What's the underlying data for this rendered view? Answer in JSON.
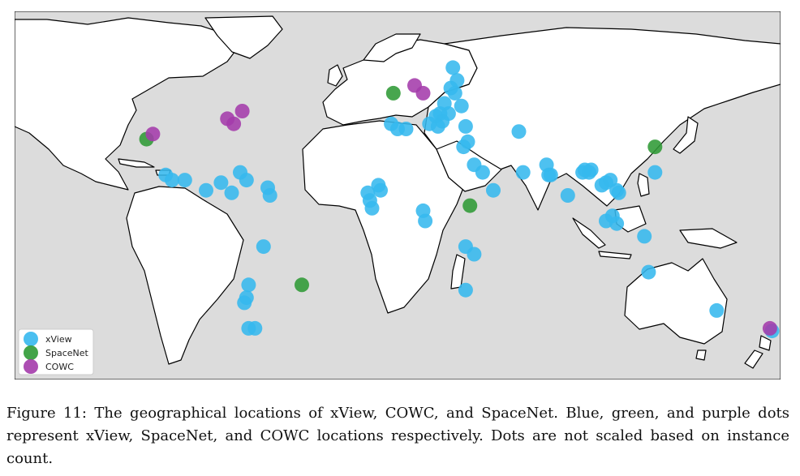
{
  "figure": {
    "caption": "Figure 11: The geographical locations of xView, COWC, and SpaceNet. Blue, green, and purple dots represent xView, SpaceNet, and COWC locations respectively. Dots are not scaled based on instance count.",
    "legend": [
      {
        "name": "xView",
        "color": "#36b8ee"
      },
      {
        "name": "SpaceNet",
        "color": "#2f9a35"
      },
      {
        "name": "COWC",
        "color": "#a43bab"
      }
    ],
    "colors": {
      "ocean": "#dcdcdc",
      "land": "#ffffff",
      "border": "#000000"
    }
  },
  "chart_data": {
    "type": "scatter",
    "grid": false,
    "legend_position": "bottom-left",
    "xlim": [
      -180,
      180
    ],
    "ylim": [
      -60,
      84
    ],
    "series": [
      {
        "name": "xView",
        "color": "#36b8ee",
        "points": [
          [
            -109,
            20
          ],
          [
            -106,
            18
          ],
          [
            -100,
            18
          ],
          [
            -90,
            14
          ],
          [
            -83,
            17
          ],
          [
            -78,
            13
          ],
          [
            -74,
            21
          ],
          [
            -71,
            18
          ],
          [
            -61,
            15
          ],
          [
            -60,
            12
          ],
          [
            -63,
            -8
          ],
          [
            -70,
            -23
          ],
          [
            -71,
            -28
          ],
          [
            -72,
            -30
          ],
          [
            -70,
            -40
          ],
          [
            -67,
            -40
          ],
          [
            -9,
            16
          ],
          [
            -8,
            14
          ],
          [
            -14,
            13
          ],
          [
            -13,
            10
          ],
          [
            -12,
            7
          ],
          [
            22,
            48
          ],
          [
            25,
            54
          ],
          [
            27,
            52
          ],
          [
            28,
            57
          ],
          [
            26,
            62
          ],
          [
            30,
            47
          ],
          [
            24,
            44
          ],
          [
            20,
            44
          ],
          [
            18,
            43
          ],
          [
            21,
            41
          ],
          [
            19,
            39
          ],
          [
            15,
            40
          ],
          [
            32,
            39
          ],
          [
            33,
            33
          ],
          [
            31,
            31
          ],
          [
            -3,
            40
          ],
          [
            0,
            38
          ],
          [
            4,
            38
          ],
          [
            12,
            6
          ],
          [
            13,
            2
          ],
          [
            36,
            24
          ],
          [
            45,
            14
          ],
          [
            40,
            21
          ],
          [
            32,
            -8
          ],
          [
            36,
            -11
          ],
          [
            32,
            -25
          ],
          [
            57,
            37
          ],
          [
            59,
            21
          ],
          [
            70,
            24
          ],
          [
            71,
            20
          ],
          [
            72,
            20
          ],
          [
            80,
            12
          ],
          [
            87,
            21
          ],
          [
            88,
            22
          ],
          [
            91,
            22
          ],
          [
            90,
            21
          ],
          [
            96,
            16
          ],
          [
            98,
            17
          ],
          [
            100,
            18
          ],
          [
            103,
            14
          ],
          [
            104,
            13
          ],
          [
            98,
            2
          ],
          [
            101,
            4
          ],
          [
            103,
            1
          ],
          [
            116,
            -4
          ],
          [
            118,
            -18
          ],
          [
            121,
            21
          ],
          [
            150,
            -33
          ],
          [
            176,
            -41
          ]
        ]
      },
      {
        "name": "SpaceNet",
        "color": "#2f9a35",
        "points": [
          [
            -118,
            34
          ],
          [
            -2,
            52
          ],
          [
            34,
            8
          ],
          [
            121,
            31
          ],
          [
            -45,
            -23
          ]
        ]
      },
      {
        "name": "COWC",
        "color": "#a43bab",
        "points": [
          [
            -115,
            36
          ],
          [
            -77,
            40
          ],
          [
            -80,
            42
          ],
          [
            -73,
            45
          ],
          [
            12,
            52
          ],
          [
            8,
            55
          ],
          [
            175,
            -40
          ]
        ]
      }
    ]
  }
}
